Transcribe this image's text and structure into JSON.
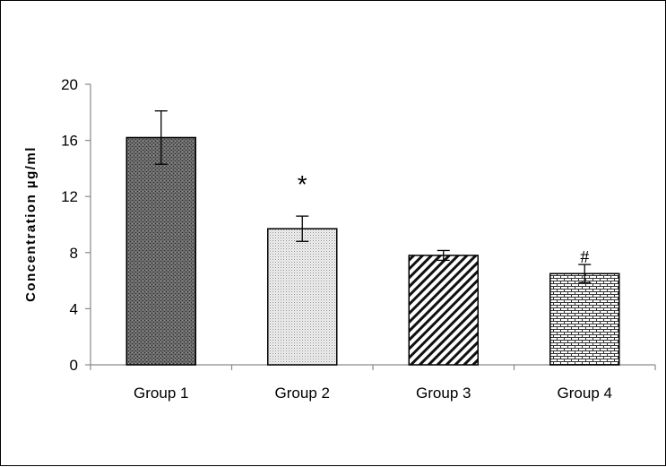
{
  "chart_data": {
    "type": "bar",
    "title": "",
    "xlabel": "",
    "ylabel": "Concentration µg/ml",
    "ylim": [
      0,
      20
    ],
    "yticks": [
      0,
      4,
      8,
      12,
      16,
      20
    ],
    "categories": [
      "Group 1",
      "Group 2",
      "Group 3",
      "Group 4"
    ],
    "values": [
      16.2,
      9.7,
      7.8,
      6.5
    ],
    "errors": [
      1.9,
      0.9,
      0.35,
      0.65
    ],
    "annotations": [
      "",
      "*",
      "",
      "#"
    ],
    "patterns": [
      "dense-dots",
      "light-dots",
      "diagonal-hatch",
      "brick"
    ],
    "grid": false,
    "legend": "none"
  }
}
